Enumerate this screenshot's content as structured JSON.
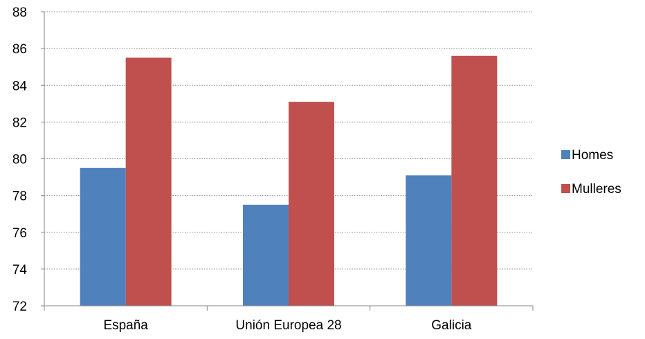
{
  "chart_data": {
    "type": "bar",
    "categories": [
      "España",
      "Unión Europea 28",
      "Galicia"
    ],
    "series": [
      {
        "name": "Homes",
        "values": [
          79.5,
          77.5,
          79.1
        ],
        "color": "#4F81BD"
      },
      {
        "name": "Mulleres",
        "values": [
          85.5,
          83.1,
          85.6
        ],
        "color": "#C0504D"
      }
    ],
    "ylim": [
      72,
      88
    ],
    "yticks": [
      72,
      74,
      76,
      78,
      80,
      82,
      84,
      86,
      88
    ],
    "grid": true,
    "legend_position": "right",
    "title": "",
    "xlabel": "",
    "ylabel": ""
  }
}
